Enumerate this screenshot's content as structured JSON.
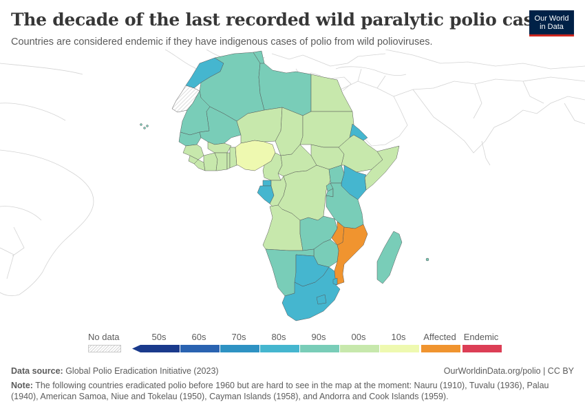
{
  "title": "The decade of the last recorded wild paralytic polio case",
  "subtitle": "Countries are considered endemic if they have indigenous cases of polio from wild polioviruses.",
  "logo": {
    "line1": "Our World",
    "line2": "in Data"
  },
  "legend": {
    "no_data_label": "No data",
    "bins": [
      {
        "label": "50s",
        "color": "#1a3a8c"
      },
      {
        "label": "60s",
        "color": "#2a63b1"
      },
      {
        "label": "70s",
        "color": "#2e92c3"
      },
      {
        "label": "80s",
        "color": "#45b6cf"
      },
      {
        "label": "90s",
        "color": "#79cdb8"
      },
      {
        "label": "00s",
        "color": "#c7e8ac"
      },
      {
        "label": "10s",
        "color": "#eef9b0"
      },
      {
        "label": "Affected",
        "color": "#f0942f"
      },
      {
        "label": "Endemic",
        "color": "#dc3e55"
      }
    ]
  },
  "map_data": {
    "region": "Africa",
    "countries": [
      {
        "name": "Morocco",
        "bin": "80s"
      },
      {
        "name": "Western Sahara",
        "bin": "No data"
      },
      {
        "name": "Algeria",
        "bin": "90s"
      },
      {
        "name": "Tunisia",
        "bin": "90s"
      },
      {
        "name": "Libya",
        "bin": "90s"
      },
      {
        "name": "Egypt",
        "bin": "00s"
      },
      {
        "name": "Mauritania",
        "bin": "90s"
      },
      {
        "name": "Mali",
        "bin": "90s"
      },
      {
        "name": "Niger",
        "bin": "00s"
      },
      {
        "name": "Chad",
        "bin": "00s"
      },
      {
        "name": "Sudan",
        "bin": "00s"
      },
      {
        "name": "South Sudan",
        "bin": "00s"
      },
      {
        "name": "Eritrea",
        "bin": "80s"
      },
      {
        "name": "Ethiopia",
        "bin": "00s"
      },
      {
        "name": "Somalia",
        "bin": "00s"
      },
      {
        "name": "Senegal",
        "bin": "90s"
      },
      {
        "name": "Guinea",
        "bin": "00s"
      },
      {
        "name": "Sierra Leone",
        "bin": "00s"
      },
      {
        "name": "Liberia",
        "bin": "00s"
      },
      {
        "name": "Côte d'Ivoire",
        "bin": "00s"
      },
      {
        "name": "Burkina Faso",
        "bin": "00s"
      },
      {
        "name": "Ghana",
        "bin": "00s"
      },
      {
        "name": "Togo",
        "bin": "00s"
      },
      {
        "name": "Benin",
        "bin": "00s"
      },
      {
        "name": "Nigeria",
        "bin": "10s"
      },
      {
        "name": "Cameroon",
        "bin": "00s"
      },
      {
        "name": "Central African Republic",
        "bin": "00s"
      },
      {
        "name": "Equatorial Guinea",
        "bin": "80s"
      },
      {
        "name": "Gabon",
        "bin": "80s"
      },
      {
        "name": "Republic of the Congo",
        "bin": "00s"
      },
      {
        "name": "DR Congo",
        "bin": "00s"
      },
      {
        "name": "Uganda",
        "bin": "90s"
      },
      {
        "name": "Kenya",
        "bin": "80s"
      },
      {
        "name": "Rwanda",
        "bin": "90s"
      },
      {
        "name": "Burundi",
        "bin": "90s"
      },
      {
        "name": "Tanzania",
        "bin": "90s"
      },
      {
        "name": "Angola",
        "bin": "00s"
      },
      {
        "name": "Zambia",
        "bin": "90s"
      },
      {
        "name": "Malawi",
        "bin": "Affected"
      },
      {
        "name": "Mozambique",
        "bin": "Affected"
      },
      {
        "name": "Zimbabwe",
        "bin": "90s"
      },
      {
        "name": "Namibia",
        "bin": "90s"
      },
      {
        "name": "Botswana",
        "bin": "80s"
      },
      {
        "name": "South Africa",
        "bin": "80s"
      },
      {
        "name": "Eswatini",
        "bin": "80s"
      },
      {
        "name": "Lesotho",
        "bin": "80s"
      },
      {
        "name": "Madagascar",
        "bin": "90s"
      },
      {
        "name": "Mauritius",
        "bin": "90s"
      }
    ]
  },
  "footer": {
    "source_label": "Data source:",
    "source_text": " Global Polio Eradication Initiative (2023)",
    "credit": "OurWorldinData.org/polio | CC BY",
    "note_label": "Note:",
    "note_text": " The following countries eradicated polio before 1960 but are hard to see in the map at the moment: Nauru (1910), Tuvalu (1936), Palau (1940), American Samoa, Niue and Tokelau (1950), Cayman Islands (1958), and Andorra and Cook Islands (1959)."
  }
}
